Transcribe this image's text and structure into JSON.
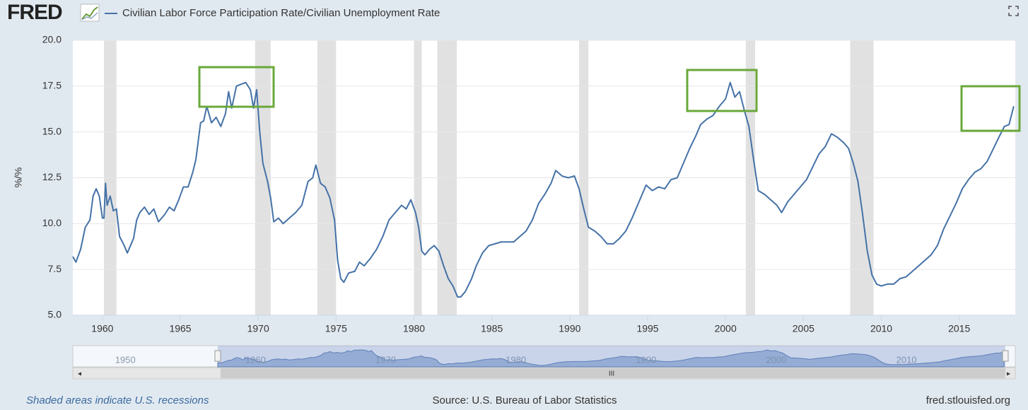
{
  "brand": "FRED",
  "footer": {
    "note": "Shaded areas indicate U.S. recessions",
    "source": "Source: U.S. Bureau of Labor Statistics",
    "site": "fred.stlouisfed.org"
  },
  "chart_data": {
    "type": "line",
    "ylabel": "%/%",
    "xlim": [
      1958.1,
      2018.6
    ],
    "xticks": [
      1960,
      1965,
      1970,
      1975,
      1980,
      1985,
      1990,
      1995,
      2000,
      2005,
      2010,
      2015
    ],
    "ylim": [
      5,
      20
    ],
    "yticks": [
      {
        "value": 5,
        "label": "5.0"
      },
      {
        "value": 7.5,
        "label": "7.5"
      },
      {
        "value": 10,
        "label": "10.0"
      },
      {
        "value": 12.5,
        "label": "12.5"
      },
      {
        "value": 15,
        "label": "15.0"
      },
      {
        "value": 17.5,
        "label": "17.5"
      },
      {
        "value": 20,
        "label": "20.0"
      }
    ],
    "grid": true,
    "recessions": [
      [
        1960.1,
        1960.9
      ],
      [
        1969.8,
        1970.8
      ],
      [
        1973.8,
        1975.0
      ],
      [
        1980.0,
        1980.5
      ],
      [
        1981.5,
        1982.75
      ],
      [
        1990.6,
        1991.2
      ],
      [
        2001.3,
        2001.9
      ],
      [
        2008.0,
        2009.5
      ]
    ],
    "recession_color": "#e1e1e1",
    "navigator": {
      "xlim": [
        1948,
        2018.6
      ],
      "xticks": [
        1950,
        1960,
        1970,
        1980,
        1990,
        2000,
        2010
      ]
    },
    "x": [
      1958.1,
      1958.3,
      1958.6,
      1958.9,
      1959.2,
      1959.4,
      1959.6,
      1959.8,
      1960.0,
      1960.1,
      1960.2,
      1960.3,
      1960.5,
      1960.7,
      1960.9,
      1961.1,
      1961.4,
      1961.6,
      1961.8,
      1962.0,
      1962.2,
      1962.4,
      1962.7,
      1963.0,
      1963.3,
      1963.6,
      1964.0,
      1964.3,
      1964.6,
      1964.9,
      1965.2,
      1965.5,
      1965.8,
      1966.0,
      1966.3,
      1966.5,
      1966.7,
      1967.0,
      1967.3,
      1967.6,
      1967.9,
      1968.1,
      1968.3,
      1968.6,
      1968.9,
      1969.2,
      1969.5,
      1969.7,
      1969.9,
      1970.1,
      1970.3,
      1970.6,
      1970.8,
      1971.0,
      1971.3,
      1971.6,
      1972.0,
      1972.4,
      1972.8,
      1973.2,
      1973.5,
      1973.7,
      1974.0,
      1974.3,
      1974.6,
      1974.9,
      1975.1,
      1975.3,
      1975.5,
      1975.8,
      1976.2,
      1976.5,
      1976.8,
      1977.2,
      1977.6,
      1978.0,
      1978.4,
      1978.8,
      1979.2,
      1979.5,
      1979.8,
      1980.1,
      1980.3,
      1980.5,
      1980.7,
      1981.0,
      1981.3,
      1981.6,
      1981.9,
      1982.2,
      1982.5,
      1982.8,
      1983.0,
      1983.3,
      1983.7,
      1984.0,
      1984.4,
      1984.8,
      1985.2,
      1985.6,
      1986.0,
      1986.4,
      1986.8,
      1987.2,
      1987.6,
      1988.0,
      1988.4,
      1988.8,
      1989.1,
      1989.5,
      1989.9,
      1990.3,
      1990.6,
      1990.9,
      1991.2,
      1991.6,
      1992.0,
      1992.4,
      1992.8,
      1993.2,
      1993.6,
      1994.0,
      1994.5,
      1994.9,
      1995.3,
      1995.7,
      1996.1,
      1996.5,
      1996.9,
      1997.3,
      1997.7,
      1998.1,
      1998.4,
      1998.8,
      1999.2,
      1999.6,
      2000.0,
      2000.3,
      2000.6,
      2000.9,
      2001.2,
      2001.5,
      2001.8,
      2002.1,
      2002.5,
      2002.9,
      2003.3,
      2003.6,
      2004.0,
      2004.4,
      2004.8,
      2005.2,
      2005.6,
      2006.0,
      2006.4,
      2006.8,
      2007.2,
      2007.6,
      2007.9,
      2008.2,
      2008.5,
      2008.8,
      2009.1,
      2009.4,
      2009.7,
      2010.0,
      2010.4,
      2010.8,
      2011.2,
      2011.6,
      2012.0,
      2012.4,
      2012.8,
      2013.2,
      2013.6,
      2014.0,
      2014.4,
      2014.8,
      2015.2,
      2015.6,
      2016.0,
      2016.4,
      2016.8,
      2017.2,
      2017.6,
      2017.9,
      2018.2,
      2018.5
    ],
    "series": [
      {
        "name": "Civilian Labor Force Participation Rate/Civilian Unemployment Rate",
        "color": "#4572a7",
        "values": [
          8.2,
          7.9,
          8.6,
          9.8,
          10.2,
          11.5,
          11.9,
          11.5,
          10.3,
          10.3,
          12.2,
          11.0,
          11.5,
          10.7,
          10.8,
          9.3,
          8.8,
          8.4,
          8.8,
          9.2,
          10.2,
          10.6,
          10.9,
          10.5,
          10.8,
          10.1,
          10.5,
          10.9,
          10.7,
          11.3,
          12.0,
          12.0,
          12.8,
          13.5,
          15.5,
          15.6,
          16.4,
          15.5,
          15.8,
          15.3,
          16.0,
          17.2,
          16.3,
          17.5,
          17.6,
          17.7,
          17.3,
          16.3,
          17.3,
          15.0,
          13.3,
          12.3,
          11.4,
          10.1,
          10.3,
          10.0,
          10.3,
          10.6,
          11.0,
          12.3,
          12.5,
          13.2,
          12.2,
          12.0,
          11.4,
          10.2,
          8.0,
          7.0,
          6.8,
          7.3,
          7.4,
          7.9,
          7.7,
          8.1,
          8.6,
          9.3,
          10.2,
          10.6,
          11.0,
          10.8,
          11.3,
          10.6,
          9.8,
          8.5,
          8.3,
          8.6,
          8.8,
          8.5,
          7.7,
          7.0,
          6.6,
          6.0,
          6.0,
          6.3,
          7.0,
          7.7,
          8.4,
          8.8,
          8.9,
          9.0,
          9.0,
          9.0,
          9.3,
          9.6,
          10.2,
          11.1,
          11.6,
          12.2,
          12.9,
          12.6,
          12.5,
          12.6,
          11.9,
          10.8,
          9.8,
          9.6,
          9.3,
          8.9,
          8.9,
          9.2,
          9.6,
          10.3,
          11.3,
          12.1,
          11.8,
          12.0,
          11.9,
          12.4,
          12.5,
          13.3,
          14.1,
          14.8,
          15.4,
          15.7,
          15.9,
          16.4,
          16.8,
          17.7,
          16.9,
          17.2,
          16.2,
          15.3,
          13.5,
          11.8,
          11.6,
          11.3,
          11.0,
          10.6,
          11.2,
          11.6,
          12.0,
          12.4,
          13.1,
          13.8,
          14.2,
          14.9,
          14.7,
          14.4,
          14.1,
          13.3,
          12.3,
          10.5,
          8.5,
          7.2,
          6.7,
          6.6,
          6.7,
          6.7,
          7.0,
          7.1,
          7.4,
          7.7,
          8.0,
          8.3,
          8.8,
          9.7,
          10.4,
          11.1,
          11.9,
          12.4,
          12.8,
          13.0,
          13.4,
          14.1,
          14.8,
          15.3,
          15.4,
          16.4
        ]
      }
    ]
  }
}
